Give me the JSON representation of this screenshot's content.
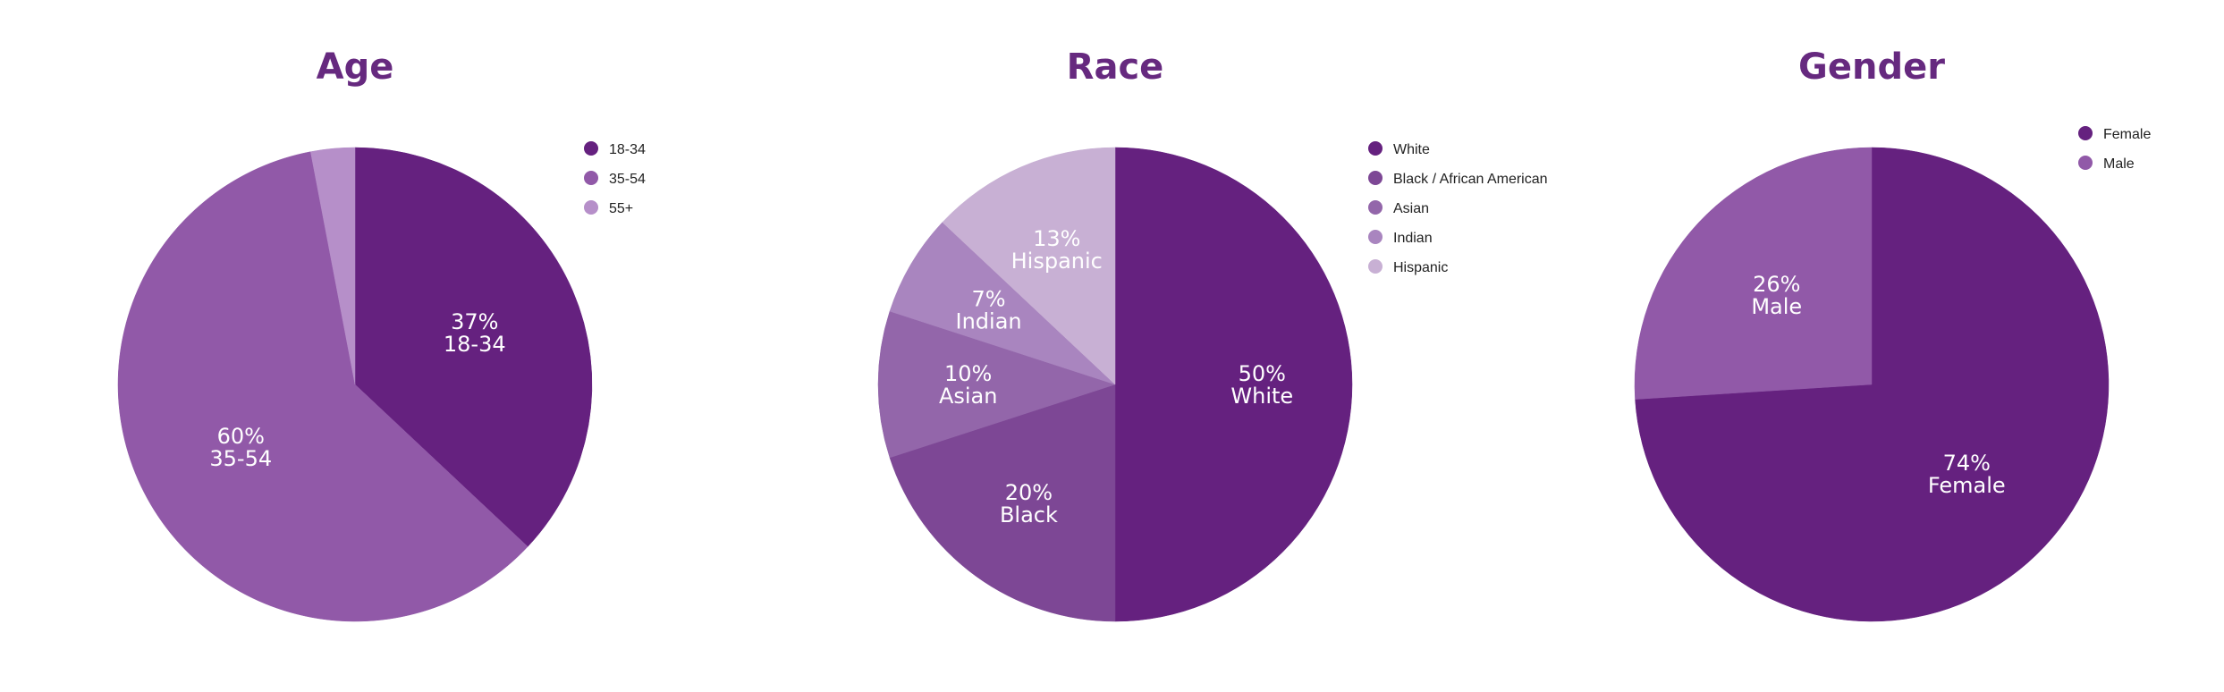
{
  "chart_data": [
    {
      "type": "pie",
      "title": "Age",
      "legend": "top-right",
      "slices": [
        {
          "name": "18-34",
          "value": 37,
          "label_pct": "37%",
          "label_name": "18-34",
          "color": "#65217f"
        },
        {
          "name": "35-54",
          "value": 60,
          "label_pct": "60%",
          "label_name": "35-54",
          "color": "#9159a8"
        },
        {
          "name": "55+",
          "value": 3,
          "label_pct": "",
          "label_name": "",
          "color": "#b68fc9"
        }
      ]
    },
    {
      "type": "pie",
      "title": "Race",
      "legend": "top-right",
      "slices": [
        {
          "name": "White",
          "value": 50,
          "label_pct": "50%",
          "label_name": "White",
          "color": "#65217f"
        },
        {
          "name": "Black / African American",
          "value": 20,
          "label_pct": "20%",
          "label_name": "Black",
          "color": "#7d4795"
        },
        {
          "name": "Asian",
          "value": 10,
          "label_pct": "10%",
          "label_name": "Asian",
          "color": "#9366aa"
        },
        {
          "name": "Indian",
          "value": 7,
          "label_pct": "7%",
          "label_name": "Indian",
          "color": "#a985bf"
        },
        {
          "name": "Hispanic",
          "value": 13,
          "label_pct": "13%",
          "label_name": "Hispanic",
          "color": "#c8b0d4"
        }
      ]
    },
    {
      "type": "pie",
      "title": "Gender",
      "legend": "top-right",
      "slices": [
        {
          "name": "Female",
          "value": 74,
          "label_pct": "74%",
          "label_name": "Female",
          "color": "#65217f"
        },
        {
          "name": "Male",
          "value": 26,
          "label_pct": "26%",
          "label_name": "Male",
          "color": "#9159a8"
        }
      ]
    }
  ]
}
